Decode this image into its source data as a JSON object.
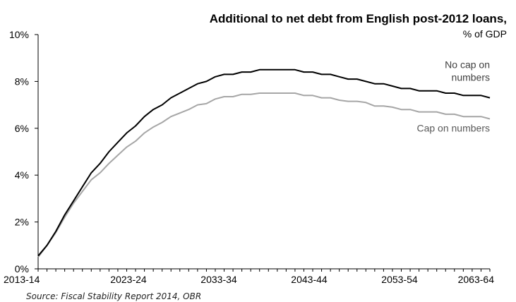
{
  "chart_data": {
    "type": "line",
    "title": "Additional to net debt from English post-2012 loans,",
    "subtitle": "% of GDP",
    "source": "Source: Fiscal Stability Report 2014, OBR",
    "x_start_year": 2013,
    "x_end_year": 2063,
    "x_tick_labels": [
      "2013-14",
      "2023-24",
      "2033-34",
      "2043-44",
      "2053-54",
      "2063-64"
    ],
    "y_tick_labels": [
      "0%",
      "2%",
      "4%",
      "6%",
      "8%",
      "10%"
    ],
    "ylim": [
      0,
      10
    ],
    "grid": false,
    "series": [
      {
        "name": "No cap on numbers",
        "label_lines": [
          "No cap on",
          "numbers"
        ],
        "color": "#000000",
        "values": [
          0.55,
          1.0,
          1.6,
          2.3,
          2.9,
          3.5,
          4.1,
          4.5,
          5.0,
          5.4,
          5.8,
          6.1,
          6.5,
          6.8,
          7.0,
          7.3,
          7.5,
          7.7,
          7.9,
          8.0,
          8.2,
          8.3,
          8.3,
          8.4,
          8.4,
          8.5,
          8.5,
          8.5,
          8.5,
          8.5,
          8.4,
          8.4,
          8.3,
          8.3,
          8.2,
          8.1,
          8.1,
          8.0,
          7.9,
          7.9,
          7.8,
          7.7,
          7.7,
          7.6,
          7.6,
          7.6,
          7.5,
          7.5,
          7.4,
          7.4,
          7.4,
          7.3
        ]
      },
      {
        "name": "Cap on numbers",
        "label_lines": [
          "Cap on numbers"
        ],
        "color": "#a6a6a6",
        "values": [
          0.5,
          1.0,
          1.55,
          2.2,
          2.8,
          3.3,
          3.8,
          4.1,
          4.5,
          4.85,
          5.2,
          5.45,
          5.8,
          6.05,
          6.25,
          6.5,
          6.65,
          6.8,
          7.0,
          7.05,
          7.25,
          7.35,
          7.35,
          7.45,
          7.45,
          7.5,
          7.5,
          7.5,
          7.5,
          7.5,
          7.4,
          7.4,
          7.3,
          7.3,
          7.2,
          7.15,
          7.15,
          7.1,
          6.95,
          6.95,
          6.9,
          6.8,
          6.8,
          6.7,
          6.7,
          6.7,
          6.6,
          6.6,
          6.5,
          6.5,
          6.5,
          6.4
        ]
      }
    ]
  }
}
